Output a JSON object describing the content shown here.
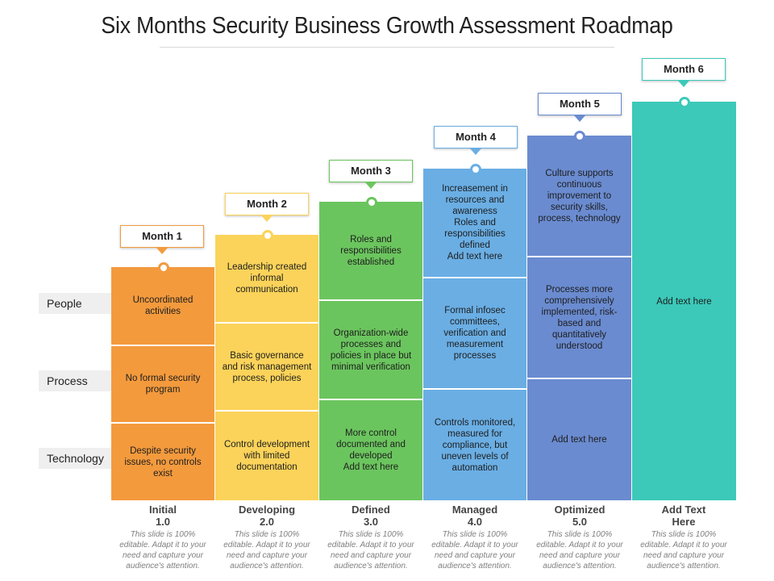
{
  "title": "Six Months Security Business Growth Assessment Roadmap",
  "row_labels": [
    "People",
    "Process",
    "Technology"
  ],
  "months": [
    {
      "label": "Month 1",
      "color": "#f39a3d"
    },
    {
      "label": "Month 2",
      "color": "#fbd35a"
    },
    {
      "label": "Month 3",
      "color": "#6bc55e"
    },
    {
      "label": "Month 4",
      "color": "#6aaee4"
    },
    {
      "label": "Month 5",
      "color": "#6a8bd0"
    },
    {
      "label": "Month 6",
      "color": "#3cc9b9"
    }
  ],
  "cells": {
    "m1": {
      "people": "Uncoordinated activities",
      "process": "No formal security program",
      "technology": "Despite security issues, no controls exist"
    },
    "m2": {
      "people": "Leadership created informal communication",
      "process": "Basic governance and risk management process, policies",
      "technology": "Control development with limited documentation"
    },
    "m3": {
      "people": "Roles and responsibilities established",
      "process": "Organization-wide processes and policies in place but minimal verification",
      "technology": "More control documented and developed\nAdd text here"
    },
    "m4": {
      "people": "Increasement in resources and awareness\nRoles and responsibilities defined\nAdd text here",
      "process": "Formal infosec committees, verification and measurement processes",
      "technology": "Controls monitored, measured for compliance, but uneven levels of automation"
    },
    "m5": {
      "people": "Culture supports continuous improvement to security skills, process, technology",
      "process": "Processes more comprehensively implemented, risk-based and quantitatively understood",
      "technology": "Add text here"
    },
    "m6": {
      "all": "Add text here"
    }
  },
  "stages": [
    {
      "name": "Initial",
      "num": "1.0",
      "desc": "This slide is 100% editable. Adapt it to your need and capture your audience's attention."
    },
    {
      "name": "Developing",
      "num": "2.0",
      "desc": "This slide is 100% editable. Adapt it to your need and capture your audience's attention."
    },
    {
      "name": "Defined",
      "num": "3.0",
      "desc": "This slide is 100% editable. Adapt it to your need and capture your audience's attention."
    },
    {
      "name": "Managed",
      "num": "4.0",
      "desc": "This slide is 100% editable. Adapt it to your need and capture your audience's attention."
    },
    {
      "name": "Optimized",
      "num": "5.0",
      "desc": "This slide is 100% editable. Adapt it to your need and capture your audience's attention."
    },
    {
      "name": "Add Text Here",
      "num": "",
      "desc": "This slide is 100% editable. Adapt it to your need and capture your audience's attention."
    }
  ]
}
